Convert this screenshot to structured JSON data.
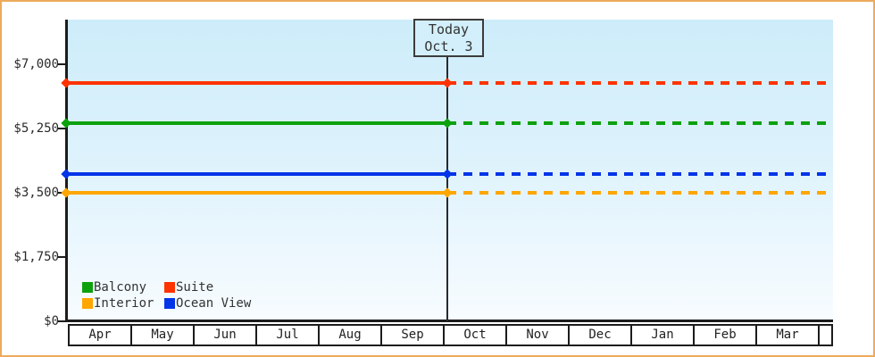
{
  "today_marker": {
    "line1": "Today",
    "line2": "Oct. 3"
  },
  "y_axis": {
    "ticks": [
      {
        "label": "$7,000",
        "value": 7000
      },
      {
        "label": "$5,250",
        "value": 5250
      },
      {
        "label": "$3,500",
        "value": 3500
      },
      {
        "label": "$1,750",
        "value": 1750
      },
      {
        "label": "$0",
        "value": 0
      }
    ]
  },
  "x_axis": {
    "months": [
      "Apr",
      "May",
      "Jun",
      "Jul",
      "Aug",
      "Sep",
      "Oct",
      "Nov",
      "Dec",
      "Jan",
      "Feb",
      "Mar"
    ]
  },
  "legend": {
    "items": [
      {
        "label": "Balcony",
        "color": "#0da10d"
      },
      {
        "label": "Suite",
        "color": "#ff3300"
      },
      {
        "label": "Interior",
        "color": "#ffa600"
      },
      {
        "label": "Ocean View",
        "color": "#0334e8"
      }
    ]
  },
  "colors": {
    "frame_border": "#edaa5e",
    "plot_gradient_top": "#cdecfa",
    "plot_gradient_bottom": "#f7fcff",
    "axis": "#1c1c1c"
  },
  "chart_data": {
    "type": "line",
    "x": [
      "Apr",
      "May",
      "Jun",
      "Jul",
      "Aug",
      "Sep",
      "Oct",
      "Nov",
      "Dec",
      "Jan",
      "Feb",
      "Mar"
    ],
    "ylim": [
      0,
      7000
    ],
    "yticks": [
      0,
      1750,
      3500,
      5250,
      7000
    ],
    "grid": false,
    "legend_position": "bottom-left inside plot",
    "series": [
      {
        "name": "Suite",
        "color": "#ff3300",
        "value": 6500,
        "note": "constant across all months; solid until Today (Oct. 3), dotted after"
      },
      {
        "name": "Balcony",
        "color": "#0da10d",
        "value": 5400,
        "note": "constant across all months; solid until Today (Oct. 3), dotted after"
      },
      {
        "name": "Ocean View",
        "color": "#0334e8",
        "value": 4000,
        "note": "constant across all months; solid until Today (Oct. 3), dotted after"
      },
      {
        "name": "Interior",
        "color": "#ffa600",
        "value": 3500,
        "note": "constant across all months; solid until Today (Oct. 3), dotted after"
      }
    ],
    "annotation": {
      "label": "Today",
      "date": "Oct. 3",
      "position": "vertical marker near start of Oct column"
    }
  }
}
